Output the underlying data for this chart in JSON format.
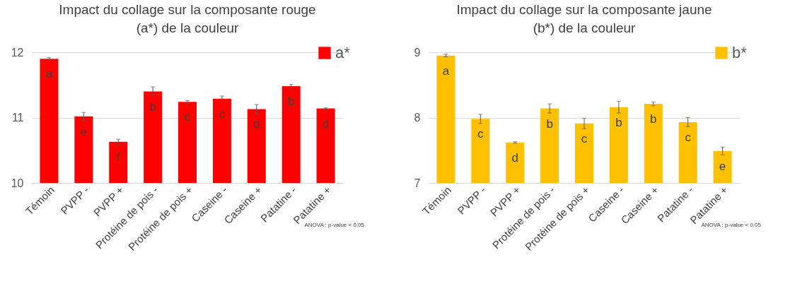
{
  "chart_data": [
    {
      "type": "bar",
      "title": "Impact du collage sur la composante rouge\n(a*) de la couleur",
      "categories": [
        "Témoin",
        "PVPP -",
        "PVPP +",
        "Protéine de pois  -",
        "Protéine de pois +",
        "Caseine -",
        "Caseine +",
        "Patatine -",
        "Patatine  +"
      ],
      "series": [
        {
          "name": "a*",
          "color": "#ff0000",
          "values": [
            11.9,
            11.02,
            10.63,
            11.4,
            11.24,
            11.29,
            11.13,
            11.48,
            11.14
          ],
          "errors": [
            0.02,
            0.06,
            0.04,
            0.07,
            0.02,
            0.04,
            0.07,
            0.03,
            0.01
          ]
        }
      ],
      "ylim": [
        10,
        12
      ],
      "yticks": [
        10,
        11,
        12
      ],
      "grid": "y",
      "legend": "top right",
      "annotations": [
        {
          "text": "a",
          "x": "Témoin",
          "y": 11.9
        },
        {
          "text": "e",
          "x": "PVPP -",
          "y": 11.02
        },
        {
          "text": "f",
          "x": "PVPP +",
          "y": 10.63
        },
        {
          "text": "b",
          "x": "Protéine de pois  -",
          "y": 11.4
        },
        {
          "text": "c",
          "x": "Protéine de pois +",
          "y": 11.24
        },
        {
          "text": "c",
          "x": "Caseine -",
          "y": 11.29
        },
        {
          "text": "d",
          "x": "Caseine +",
          "y": 11.13
        },
        {
          "text": "b",
          "x": "Patatine -",
          "y": 11.48
        },
        {
          "text": "d",
          "x": "Patatine  +",
          "y": 11.14
        },
        "ANOVA : p-value < 0.05"
      ]
    },
    {
      "type": "bar",
      "title": "Impact du collage sur la composante jaune\n(b*) de la couleur",
      "categories": [
        "Témoin",
        "PVPP -",
        "PVPP +",
        "Protéine de pois  -",
        "Protéine de pois  +",
        "Caseine -",
        "Caseine +",
        "Patatine -",
        "Patatine  +"
      ],
      "series": [
        {
          "name": "b*",
          "color": "#ffc000",
          "values": [
            8.95,
            7.98,
            7.62,
            8.14,
            7.91,
            8.16,
            8.21,
            7.93,
            7.49
          ],
          "errors": [
            0.02,
            0.07,
            0.01,
            0.07,
            0.08,
            0.09,
            0.03,
            0.07,
            0.06
          ]
        }
      ],
      "ylim": [
        7,
        9
      ],
      "yticks": [
        7,
        8,
        9
      ],
      "grid": "y",
      "legend": "top right",
      "annotations": [
        {
          "text": "a",
          "x": "Témoin",
          "y": 8.95
        },
        {
          "text": "c",
          "x": "PVPP -",
          "y": 7.98
        },
        {
          "text": "d",
          "x": "PVPP +",
          "y": 7.62
        },
        {
          "text": "b",
          "x": "Protéine de pois  -",
          "y": 8.14
        },
        {
          "text": "c",
          "x": "Protéine de pois  +",
          "y": 7.91
        },
        {
          "text": "b",
          "x": "Caseine -",
          "y": 8.16
        },
        {
          "text": "b",
          "x": "Caseine +",
          "y": 8.21
        },
        {
          "text": "c",
          "x": "Patatine -",
          "y": 7.93
        },
        {
          "text": "e",
          "x": "Patatine  +",
          "y": 7.49
        },
        "ANOVA : p-value < 0.05"
      ]
    }
  ]
}
